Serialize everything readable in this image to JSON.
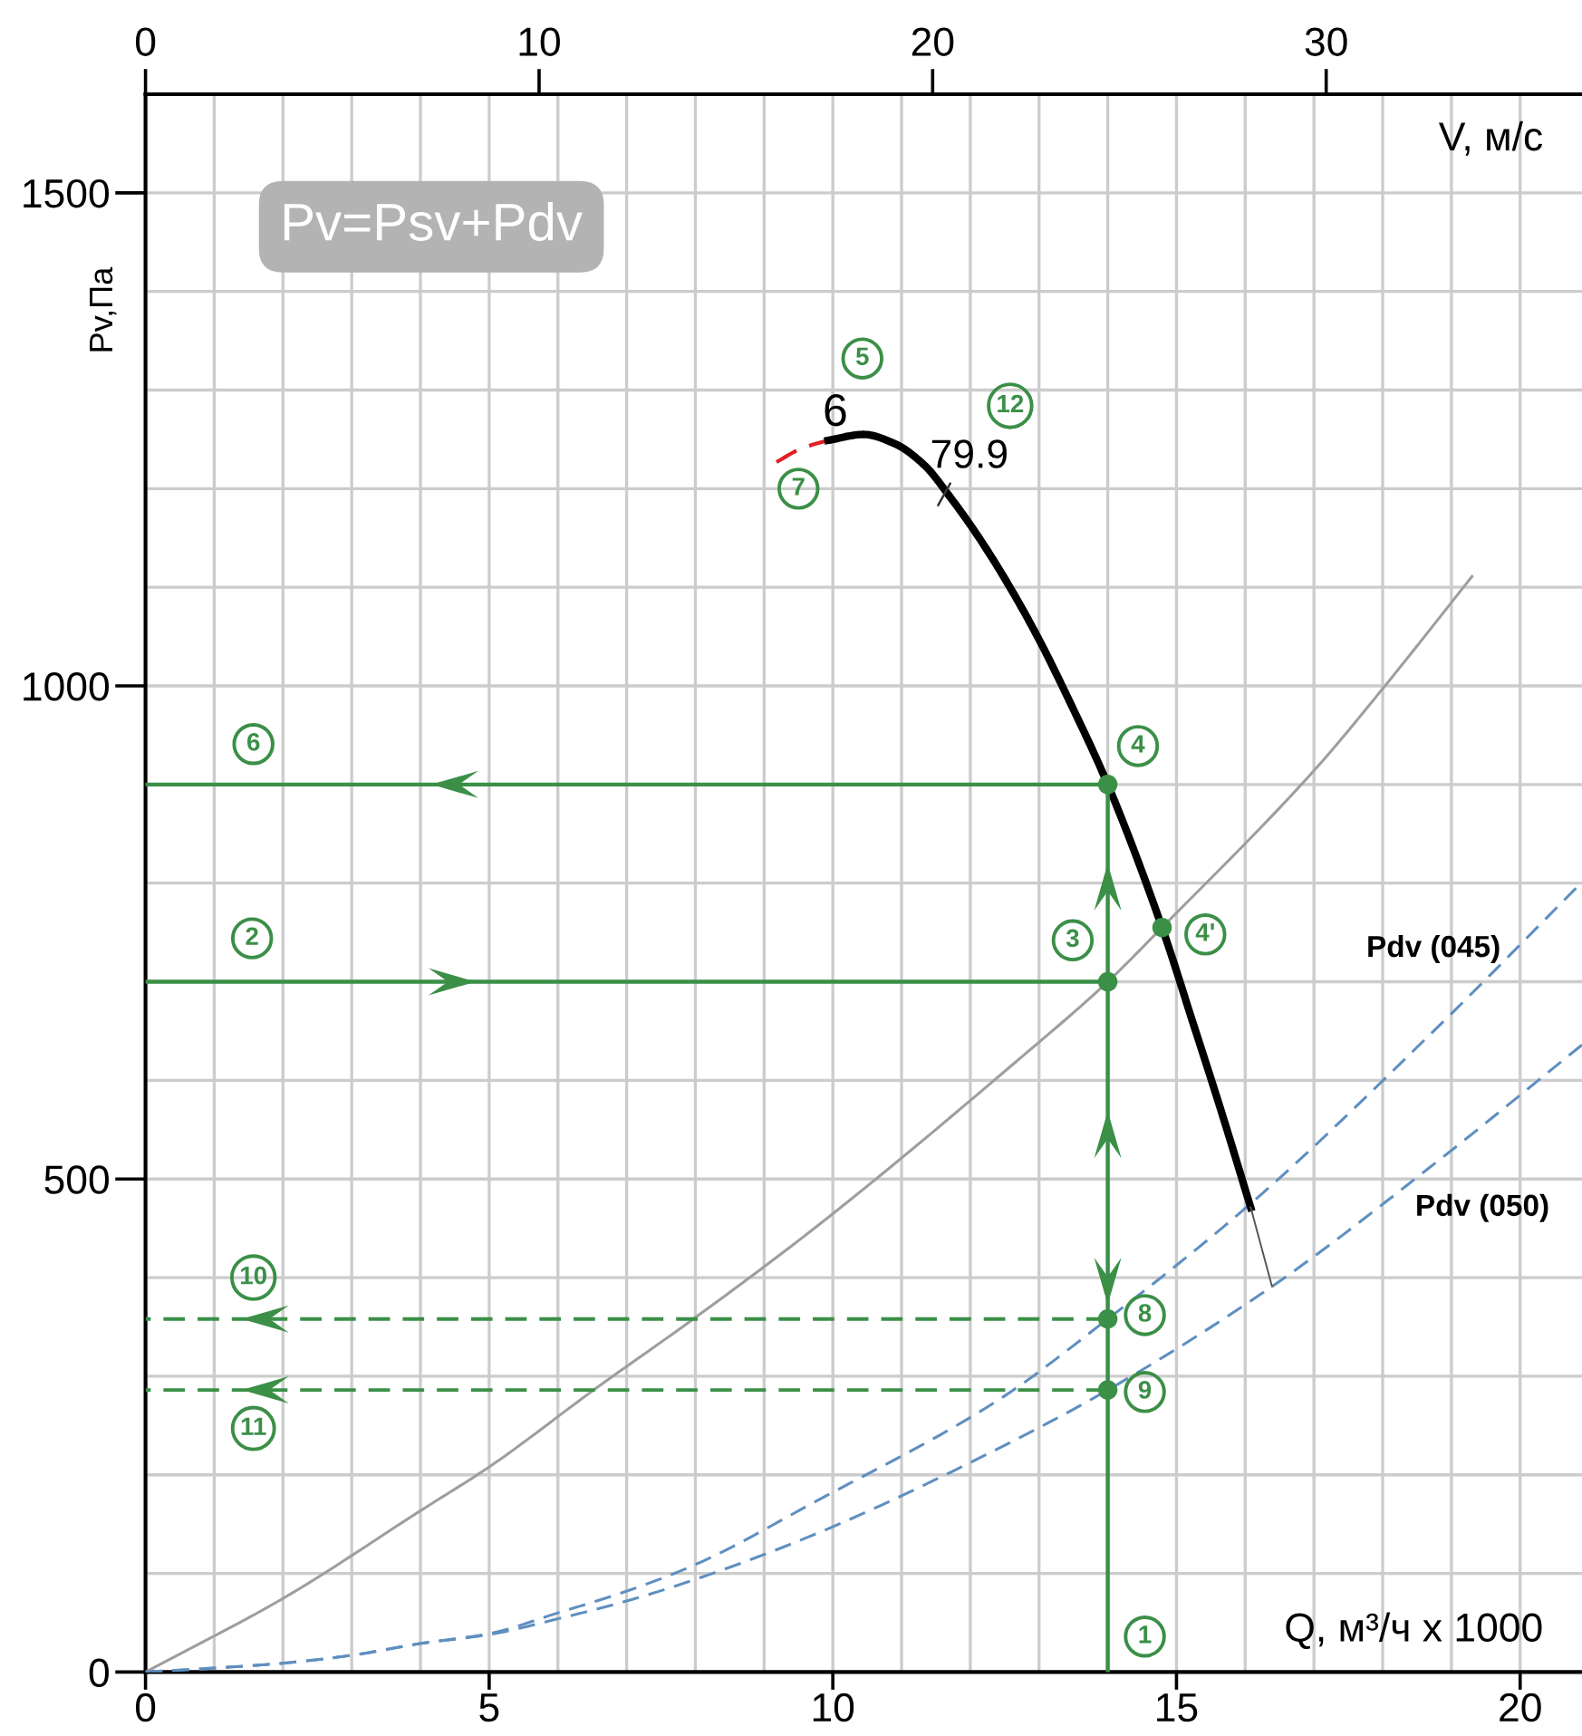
{
  "chart_data": {
    "type": "line",
    "xlabel": "Q, м³/ч x 1000",
    "ylabel": "Pv,Па",
    "x2label": "V, м/с",
    "xlim": [
      0,
      20.9
    ],
    "ylim": [
      0,
      1600
    ],
    "x2lim": [
      0,
      36.5
    ],
    "xticks": [
      0,
      {
        "value": 1,
        "label": null
      },
      {
        "value": 2,
        "label": null
      },
      {
        "value": 3,
        "label": null
      },
      {
        "value": 4,
        "label": null
      },
      5,
      {
        "value": 6,
        "label": null
      },
      {
        "value": 7,
        "label": null
      },
      {
        "value": 8,
        "label": null
      },
      {
        "value": 9,
        "label": null
      },
      10,
      {
        "value": 11,
        "label": null
      },
      {
        "value": 12,
        "label": null
      },
      {
        "value": 13,
        "label": null
      },
      {
        "value": 14,
        "label": null
      },
      15,
      {
        "value": 16,
        "label": null
      },
      {
        "value": 17,
        "label": null
      },
      {
        "value": 18,
        "label": null
      },
      {
        "value": 19,
        "label": null
      },
      20
    ],
    "yticks": [
      0,
      {
        "value": 100,
        "label": null
      },
      {
        "value": 200,
        "label": null
      },
      {
        "value": 300,
        "label": null
      },
      {
        "value": 400,
        "label": null
      },
      500,
      {
        "value": 600,
        "label": null
      },
      {
        "value": 700,
        "label": null
      },
      {
        "value": 800,
        "label": null
      },
      {
        "value": 900,
        "label": null
      },
      1000,
      {
        "value": 1100,
        "label": null
      },
      {
        "value": 1200,
        "label": null
      },
      {
        "value": 1300,
        "label": null
      },
      {
        "value": 1400,
        "label": null
      },
      1500
    ],
    "x2ticks": [
      0,
      10,
      20,
      30
    ],
    "grid": true,
    "series": [
      {
        "color": "#9e9e9e",
        "x": [
          0,
          2.01,
          4.01,
          5,
          6.54,
          8.01,
          9.75,
          12.65,
          14,
          14.79,
          17.05,
          18.01,
          19.3
        ],
        "values": [
          0,
          75,
          164,
          208,
          287,
          360,
          451,
          618,
          700,
          755,
          918,
          998,
          1111
        ]
      },
      {
        "name": "Pdv (045)",
        "color": "#5f8fc0",
        "line_style": "dashed",
        "x": [
          0,
          1,
          2,
          3,
          4.01,
          5,
          6,
          7,
          8,
          9.75,
          12.39,
          14,
          16.08,
          18.8,
          20.9
        ],
        "values": [
          0,
          4,
          9,
          17,
          29,
          39,
          60,
          82,
          109,
          173,
          275,
          358,
          475,
          654,
          801
        ]
      },
      {
        "name": "Pdv (050)",
        "color": "#5f8fc0",
        "line_style": "dashed",
        "x": [
          0,
          1,
          2,
          3,
          4.01,
          5,
          6,
          7,
          8,
          9.75,
          12.39,
          14,
          16.39,
          18.8,
          20.9
        ],
        "values": [
          0,
          4,
          9,
          17,
          29,
          38,
          54,
          72,
          94,
          140,
          226,
          286,
          391,
          518,
          636
        ]
      },
      {
        "color": "#e31e24",
        "line_style": "dashed",
        "x": [
          9.18,
          9.55,
          9.93
        ],
        "values": [
          1227,
          1241,
          1249
        ]
      },
      {
        "name": "6",
        "color": "#000000",
        "x": [
          9.93,
          10.45,
          10.89,
          11.33,
          11.68,
          12.12,
          12.56,
          13.0,
          13.44,
          14,
          14.79,
          15.26,
          15.65,
          16.08
        ],
        "values": [
          1249,
          1255,
          1246,
          1224,
          1194,
          1151,
          1102,
          1047,
          985,
          900,
          755,
          654,
          569,
          471
        ]
      },
      {
        "color": "#555555",
        "x": [
          16.08,
          16.39
        ],
        "values": [
          471,
          391
        ]
      },
      {
        "color": "#3b8f47",
        "x": [
          14,
          0
        ],
        "values": [
          900,
          900
        ]
      },
      {
        "color": "#3b8f47",
        "x": [
          0,
          14
        ],
        "values": [
          700,
          700
        ]
      },
      {
        "color": "#3b8f47",
        "line_style": "dashed",
        "x": [
          14,
          0
        ],
        "values": [
          358,
          358
        ]
      },
      {
        "color": "#3b8f47",
        "line_style": "dashed",
        "x": [
          14,
          0
        ],
        "values": [
          286,
          286
        ]
      },
      {
        "color": "#3b8f47",
        "x": [
          14,
          14
        ],
        "values": [
          0,
          900
        ]
      },
      {
        "type": "scatter",
        "marker": "circle",
        "color": "#3b8f47",
        "x": [
          14,
          14.79,
          14,
          14,
          14
        ],
        "values": [
          900,
          755,
          700,
          358,
          286
        ]
      }
    ],
    "annotations": [
      "Pv=Psv+Pdv",
      {
        "text": "1",
        "x": 14.54,
        "y": 36
      },
      {
        "text": "2",
        "x": 1.55,
        "y": 744
      },
      {
        "text": "3",
        "x": 13.49,
        "y": 742
      },
      {
        "text": "4",
        "x": 14.44,
        "y": 939
      },
      {
        "text": "4'",
        "x": 15.42,
        "y": 748
      },
      {
        "text": "5",
        "x": 10.43,
        "y": 1332
      },
      {
        "text": "6",
        "x": 1.57,
        "y": 941
      },
      {
        "text": "7",
        "x": 9.5,
        "y": 1200
      },
      {
        "text": "8",
        "x": 14.54,
        "y": 362
      },
      {
        "text": "9",
        "x": 14.54,
        "y": 284
      },
      {
        "text": "10",
        "x": 1.57,
        "y": 400
      },
      {
        "text": "11",
        "x": 1.57,
        "y": 247
      },
      {
        "text": "12",
        "x": 12.58,
        "y": 1284
      },
      {
        "text": "79.9",
        "x": 11.62,
        "y": 1195
      }
    ]
  }
}
